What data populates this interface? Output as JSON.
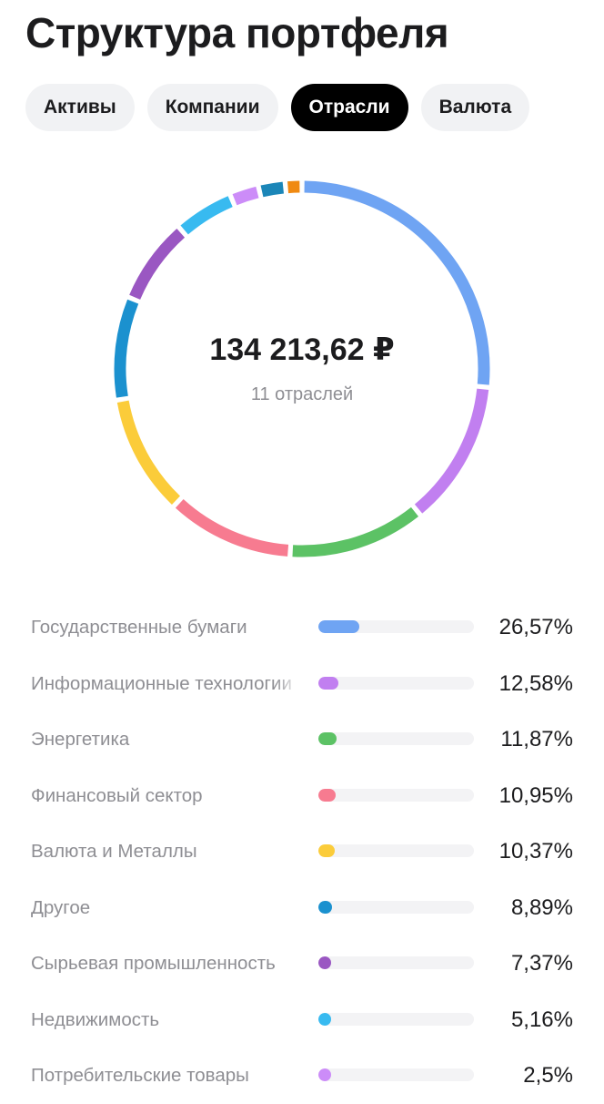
{
  "page_title": "Структура портфеля",
  "tabs": [
    {
      "label": "Активы",
      "active": false
    },
    {
      "label": "Компании",
      "active": false
    },
    {
      "label": "Отрасли",
      "active": true
    },
    {
      "label": "Валюта",
      "active": false
    }
  ],
  "summary": {
    "total": "134 213,62 ₽",
    "subtitle": "11 отраслей"
  },
  "sectors": [
    {
      "name": "Государственные бумаги",
      "percent_text": "26,57%",
      "value": 26.57,
      "color": "#6fa4f3"
    },
    {
      "name": "Информационные технологии",
      "percent_text": "12,58%",
      "value": 12.58,
      "color": "#c17ff0"
    },
    {
      "name": "Энергетика",
      "percent_text": "11,87%",
      "value": 11.87,
      "color": "#5cc265"
    },
    {
      "name": "Финансовый сектор",
      "percent_text": "10,95%",
      "value": 10.95,
      "color": "#f77b90"
    },
    {
      "name": "Валюта и Металлы",
      "percent_text": "10,37%",
      "value": 10.37,
      "color": "#fbcc3a"
    },
    {
      "name": "Другое",
      "percent_text": "8,89%",
      "value": 8.89,
      "color": "#1b91cf"
    },
    {
      "name": "Сырьевая промышленность",
      "percent_text": "7,37%",
      "value": 7.37,
      "color": "#9a57c2"
    },
    {
      "name": "Недвижимость",
      "percent_text": "5,16%",
      "value": 5.16,
      "color": "#38baf0"
    },
    {
      "name": "Потребительские товары",
      "percent_text": "2,5%",
      "value": 2.5,
      "color": "#cc8cf8"
    }
  ],
  "hidden_segments": [
    {
      "value": 2.3,
      "color": "#1b86b8"
    },
    {
      "value": 1.44,
      "color": "#f08a12"
    }
  ]
}
